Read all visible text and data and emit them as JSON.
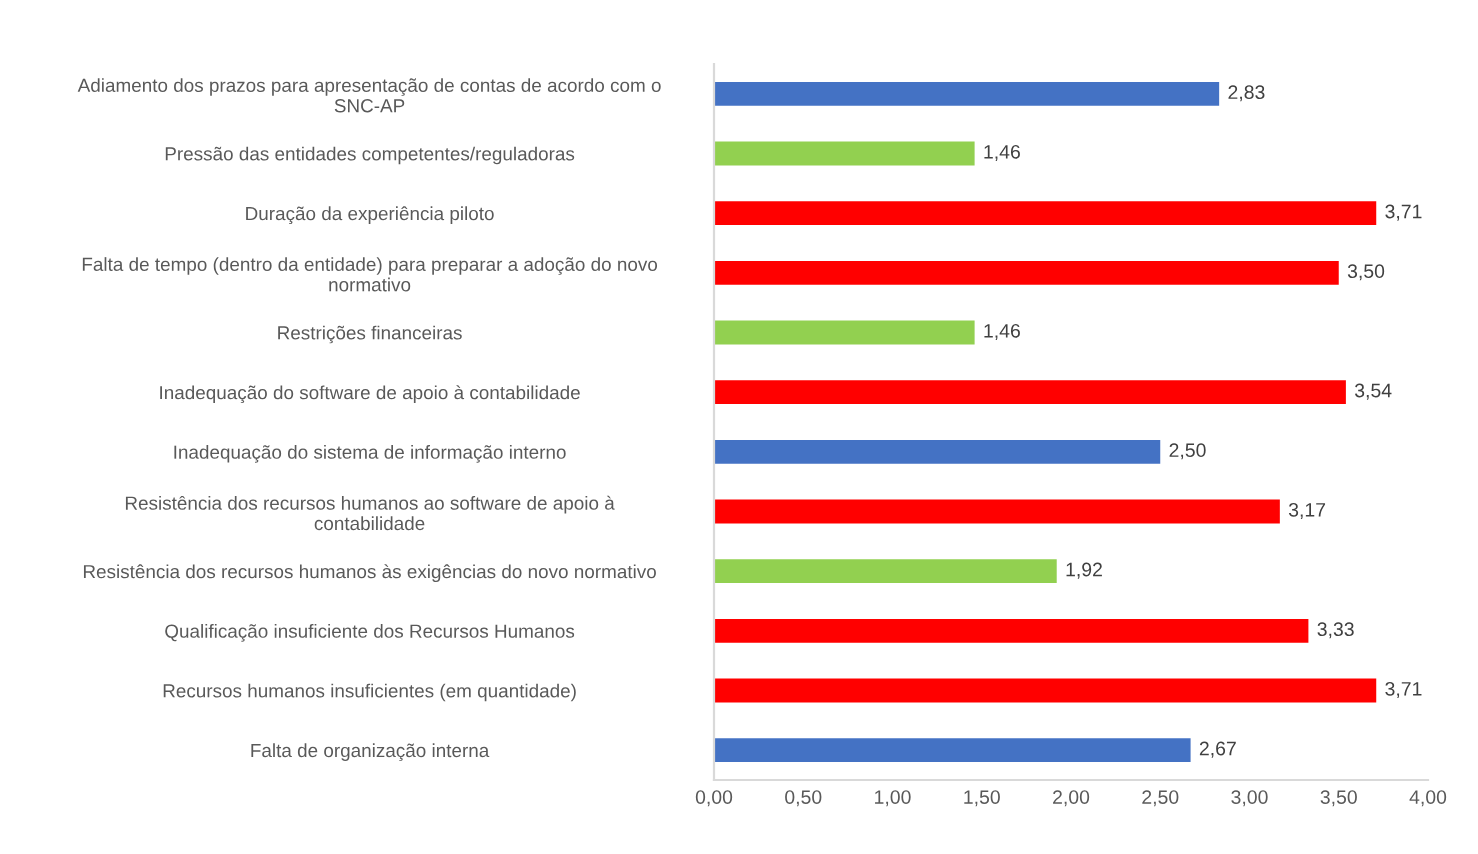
{
  "chart_data": {
    "type": "bar",
    "orientation": "horizontal",
    "categories": [
      "Adiamento dos prazos para apresentação de contas de acordo com o\nSNC-AP",
      "Pressão das entidades competentes/reguladoras",
      "Duração da experiência piloto",
      "Falta de tempo (dentro da entidade) para preparar a adoção do novo\nnormativo",
      "Restrições financeiras",
      "Inadequação do software de apoio à contabilidade",
      "Inadequação do sistema de informação interno",
      "Resistência dos recursos humanos ao software de apoio à\ncontabilidade",
      "Resistência dos recursos humanos às exigências do novo normativo",
      "Qualificação insuficiente dos Recursos Humanos",
      "Recursos humanos insuficientes (em quantidade)",
      "Falta de organização interna"
    ],
    "values": [
      2.83,
      1.46,
      3.71,
      3.5,
      1.46,
      3.54,
      2.5,
      3.17,
      1.92,
      3.33,
      3.71,
      2.67
    ],
    "value_labels": [
      "2,83",
      "1,46",
      "3,71",
      "3,50",
      "1,46",
      "3,54",
      "2,50",
      "3,17",
      "1,92",
      "3,33",
      "3,71",
      "2,67"
    ],
    "colors": [
      "#4472c4",
      "#92d050",
      "#ff0000",
      "#ff0000",
      "#92d050",
      "#ff0000",
      "#4472c4",
      "#ff0000",
      "#92d050",
      "#ff0000",
      "#ff0000",
      "#4472c4"
    ],
    "xlim": [
      0,
      4
    ],
    "xticks": [
      {
        "value": 0,
        "label": "0,00"
      },
      {
        "value": 0.5,
        "label": "0,50"
      },
      {
        "value": 1,
        "label": "1,00"
      },
      {
        "value": 1.5,
        "label": "1,50"
      },
      {
        "value": 2,
        "label": "2,00"
      },
      {
        "value": 2.5,
        "label": "2,50"
      },
      {
        "value": 3,
        "label": "3,00"
      },
      {
        "value": 3.5,
        "label": "3,50"
      },
      {
        "value": 4,
        "label": "4,00"
      }
    ],
    "grid": false,
    "legend": false
  }
}
